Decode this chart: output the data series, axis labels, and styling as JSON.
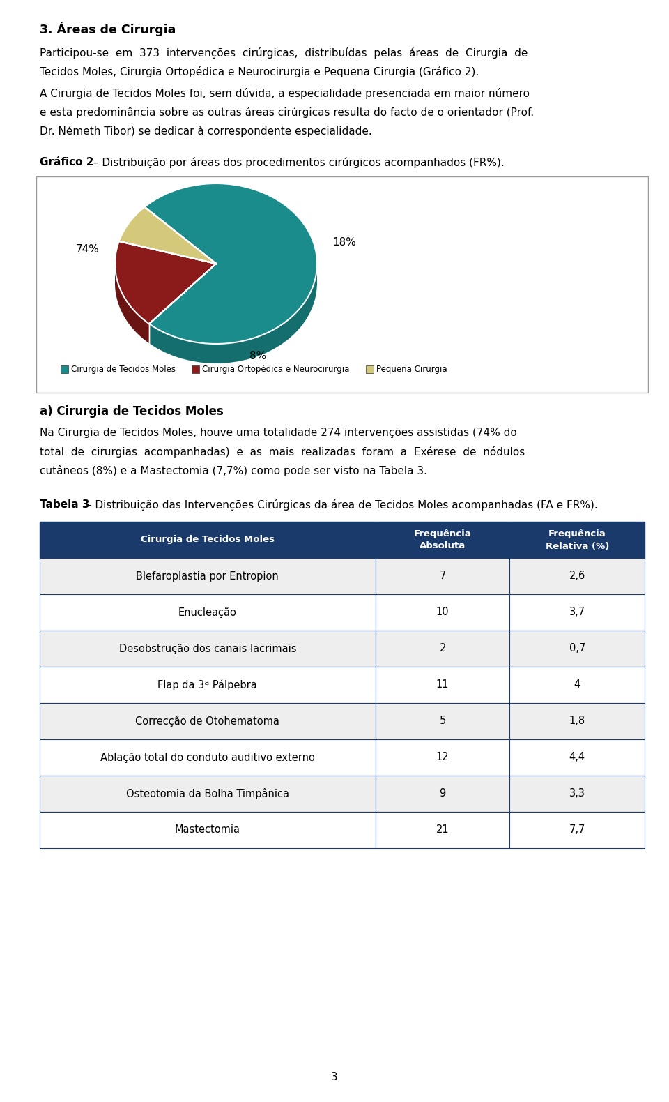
{
  "page_title": "3. Áreas de Cirurgia",
  "para1_lines": [
    "Participou-se  em  373  intervenções  cirúrgicas,  distribuídas  pelas  áreas  de  Cirurgia  de",
    "Tecidos Moles, Cirurgia Ortopédica e Neurocirurgia e Pequena Cirurgia (Gráfico 2)."
  ],
  "para2_lines": [
    "A Cirurgia de Tecidos Moles foi, sem dúvida, a especialidade presenciada em maior número",
    "e esta predominância sobre as outras áreas cirúrgicas resulta do facto de o orientador (Prof.",
    "Dr. Németh Tibor) se dedicar à correspondente especialidade."
  ],
  "grafico_bold": "Gráfico 2",
  "grafico_rest": " – Distribuição por áreas dos procedimentos cirúrgicos acompanhados (FR%).",
  "pie_values": [
    74,
    18,
    8
  ],
  "pie_colors_top": [
    "#1a8c8c",
    "#8b1a1a",
    "#d4c87a"
  ],
  "pie_colors_side": [
    "#156e6e",
    "#6b1414",
    "#b0a660"
  ],
  "pie_label_74": "74%",
  "pie_label_18": "18%",
  "pie_label_8": "8%",
  "legend_colors": [
    "#1a8c8c",
    "#8b1a1a",
    "#d4c87a"
  ],
  "legend_labels": [
    "Cirurgia de Tecidos Moles",
    "Cirurgia Ortopédica e Neurocirurgia",
    "Pequena Cirurgia"
  ],
  "section_a": "a) Cirurgia de Tecidos Moles",
  "para3_lines": [
    "Na Cirurgia de Tecidos Moles, houve uma totalidade 274 intervenções assistidas (74% do",
    "total  de  cirurgias  acompanhadas)  e  as  mais  realizadas  foram  a  Exérese  de  nódulos",
    "cutâneos (8%) e a Mastectomia (7,7%) como pode ser visto na Tabela 3."
  ],
  "tabela_bold": "Tabela 3",
  "tabela_rest": " – Distribuição das Intervenções Cirúrgicas da área de Tecidos Moles acompanhadas (FA e FR%).",
  "table_header": [
    "Cirurgia de Tecidos Moles",
    "Frequência\nAbsoluta",
    "Frequência\nRelativa (%)"
  ],
  "table_header_bg": "#1a3a6b",
  "table_header_color": "#ffffff",
  "table_rows": [
    [
      "Blefaroplastia por Entropion",
      "7",
      "2,6"
    ],
    [
      "Enucleação",
      "10",
      "3,7"
    ],
    [
      "Desobstrução dos canais lacrimais",
      "2",
      "0,7"
    ],
    [
      "Flap da 3ª Pálpebra",
      "11",
      "4"
    ],
    [
      "Correcção de Otohematoma",
      "5",
      "1,8"
    ],
    [
      "Ablação total do conduto auditivo externo",
      "12",
      "4,4"
    ],
    [
      "Osteotomia da Bolha Timpânica",
      "9",
      "3,3"
    ],
    [
      "Mastectomia",
      "21",
      "7,7"
    ]
  ],
  "table_row_bg_odd": "#eeeeee",
  "table_row_bg_even": "#ffffff",
  "table_border_color": "#1a3a6b",
  "page_number": "3",
  "text_color": "#000000",
  "background_color": "#ffffff"
}
